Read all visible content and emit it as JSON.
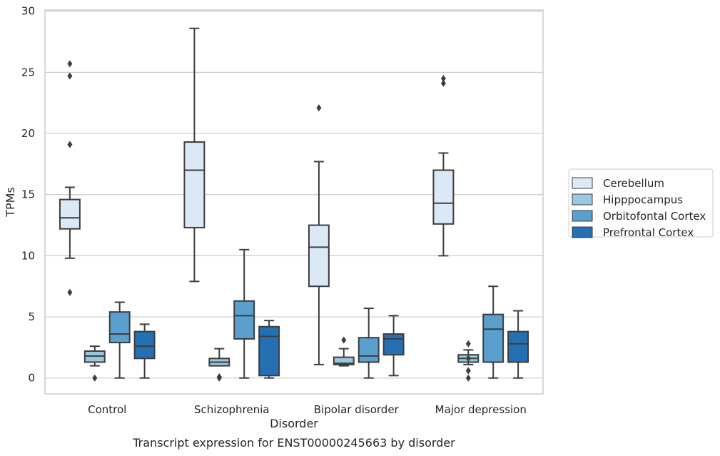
{
  "chart_data": {
    "type": "box",
    "xlabel": "Disorder",
    "ylabel": "TPMs",
    "caption": "Transcript expression for ENST00000245663 by disorder",
    "ylim": [
      -1.3,
      30.1
    ],
    "yticks": [
      0,
      5,
      10,
      15,
      20,
      25,
      30
    ],
    "grid": "horizontal",
    "legend_placement": "right",
    "categories": [
      "Control",
      "Schizophrenia",
      "Bipolar disorder",
      "Major depression"
    ],
    "series": [
      {
        "name": "Cerebellum",
        "color": "#dbe9f6",
        "boxes": [
          {
            "whislo": 9.8,
            "q1": 12.2,
            "med": 13.1,
            "q3": 14.6,
            "whishi": 15.6,
            "fliers": [
              25.7,
              24.7,
              19.1,
              7.0
            ]
          },
          {
            "whislo": 7.9,
            "q1": 12.3,
            "med": 17.0,
            "q3": 19.3,
            "whishi": 28.6,
            "fliers": []
          },
          {
            "whislo": 1.1,
            "q1": 7.5,
            "med": 10.7,
            "q3": 12.5,
            "whishi": 17.7,
            "fliers": [
              22.1
            ]
          },
          {
            "whislo": 10.0,
            "q1": 12.6,
            "med": 14.3,
            "q3": 17.0,
            "whishi": 18.4,
            "fliers": [
              24.5,
              24.1
            ]
          }
        ]
      },
      {
        "name": "Hipppocampus",
        "color": "#9ac8e0",
        "boxes": [
          {
            "whislo": 1.0,
            "q1": 1.3,
            "med": 1.8,
            "q3": 2.2,
            "whishi": 2.6,
            "fliers": [
              0.0
            ]
          },
          {
            "whislo": 1.0,
            "q1": 1.0,
            "med": 1.3,
            "q3": 1.6,
            "whishi": 2.4,
            "fliers": [
              0.1,
              0.0
            ]
          },
          {
            "whislo": 1.0,
            "q1": 1.1,
            "med": 1.2,
            "q3": 1.7,
            "whishi": 2.4,
            "fliers": [
              3.1
            ]
          },
          {
            "whislo": 1.1,
            "q1": 1.3,
            "med": 1.6,
            "q3": 1.9,
            "whishi": 2.3,
            "fliers": [
              1.6,
              2.8,
              0.6,
              0.0
            ]
          }
        ]
      },
      {
        "name": "Orbitofontal Cortex",
        "color": "#5a9fcd",
        "boxes": [
          {
            "whislo": 0.0,
            "q1": 2.9,
            "med": 3.6,
            "q3": 5.4,
            "whishi": 6.2,
            "fliers": []
          },
          {
            "whislo": 0.0,
            "q1": 3.2,
            "med": 5.1,
            "q3": 6.3,
            "whishi": 10.5,
            "fliers": []
          },
          {
            "whislo": 0.0,
            "q1": 1.3,
            "med": 1.8,
            "q3": 3.3,
            "whishi": 5.7,
            "fliers": []
          },
          {
            "whislo": 0.0,
            "q1": 1.3,
            "med": 4.0,
            "q3": 5.2,
            "whishi": 7.5,
            "fliers": []
          }
        ]
      },
      {
        "name": "Prefrontal Cortex",
        "color": "#2470b3",
        "boxes": [
          {
            "whislo": 0.0,
            "q1": 1.6,
            "med": 2.6,
            "q3": 3.8,
            "whishi": 4.4,
            "fliers": []
          },
          {
            "whislo": 0.0,
            "q1": 0.2,
            "med": 3.4,
            "q3": 4.2,
            "whishi": 4.7,
            "fliers": []
          },
          {
            "whislo": 0.2,
            "q1": 1.9,
            "med": 3.2,
            "q3": 3.6,
            "whishi": 5.1,
            "fliers": []
          },
          {
            "whislo": 0.0,
            "q1": 1.3,
            "med": 2.8,
            "q3": 3.8,
            "whishi": 5.5,
            "fliers": []
          }
        ]
      }
    ]
  }
}
